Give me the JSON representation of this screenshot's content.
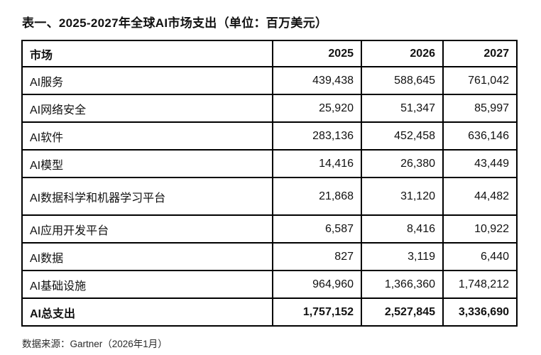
{
  "title": "表一、2025-2027年全球AI市场支出（单位：百万美元）",
  "source_note": "数据来源：Gartner（2026年1月）",
  "colors": {
    "background": "#ffffff",
    "border": "#000000",
    "text": "#111111",
    "note_text": "#2b2b2b"
  },
  "table": {
    "headers": [
      "市场",
      "2025",
      "2026",
      "2027"
    ],
    "rows": [
      {
        "market": "AI服务",
        "y2025": "439,438",
        "y2026": "588,645",
        "y2027": "761,042"
      },
      {
        "market": "AI网络安全",
        "y2025": "25,920",
        "y2026": "51,347",
        "y2027": "85,997"
      },
      {
        "market": "AI软件",
        "y2025": "283,136",
        "y2026": "452,458",
        "y2027": "636,146"
      },
      {
        "market": "AI模型",
        "y2025": "14,416",
        "y2026": "26,380",
        "y2027": "43,449"
      },
      {
        "market": "AI数据科学和机器学习平台",
        "y2025": "21,868",
        "y2026": "31,120",
        "y2027": "44,482"
      },
      {
        "market": "AI应用开发平台",
        "y2025": "6,587",
        "y2026": "8,416",
        "y2027": "10,922"
      },
      {
        "market": "AI数据",
        "y2025": "827",
        "y2026": "3,119",
        "y2027": "6,440"
      },
      {
        "market": "AI基础设施",
        "y2025": "964,960",
        "y2026": "1,366,360",
        "y2027": "1,748,212"
      }
    ],
    "total": {
      "market": "AI总支出",
      "y2025": "1,757,152",
      "y2026": "2,527,845",
      "y2027": "3,336,690"
    }
  },
  "chart_data": {
    "type": "table",
    "title": "表一、2025-2027年全球AI市场支出（单位：百万美元）",
    "unit": "百万美元",
    "columns": [
      "市场",
      "2025",
      "2026",
      "2027"
    ],
    "rows": [
      [
        "AI服务",
        439438,
        588645,
        761042
      ],
      [
        "AI网络安全",
        25920,
        51347,
        85997
      ],
      [
        "AI软件",
        283136,
        452458,
        636146
      ],
      [
        "AI模型",
        14416,
        26380,
        43449
      ],
      [
        "AI数据科学和机器学习平台",
        21868,
        31120,
        44482
      ],
      [
        "AI应用开发平台",
        6587,
        8416,
        10922
      ],
      [
        "AI数据",
        827,
        3119,
        6440
      ],
      [
        "AI基础设施",
        964960,
        1366360,
        1748212
      ],
      [
        "AI总支出",
        1757152,
        2527845,
        3336690
      ]
    ],
    "source": "数据来源：Gartner（2026年1月）"
  }
}
